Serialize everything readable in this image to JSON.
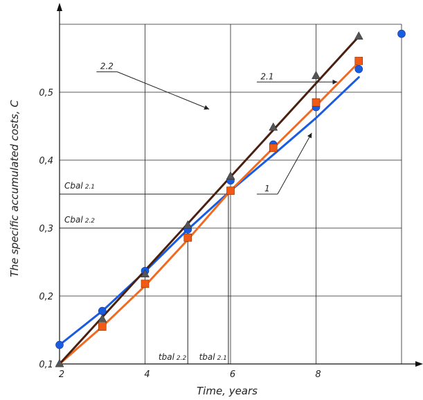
{
  "chart_data": {
    "type": "line",
    "title": "",
    "xlabel": "Time, years",
    "ylabel": "The specific accumulated costs, C",
    "xlim": [
      2,
      10
    ],
    "ylim": [
      0.1,
      0.6
    ],
    "x_ticks": [
      {
        "value": 2,
        "label": "2"
      },
      {
        "value": 4,
        "label": "4"
      },
      {
        "value": 6,
        "label": "6"
      },
      {
        "value": 8,
        "label": "8"
      }
    ],
    "y_ticks": [
      {
        "value": 0.1,
        "label": "0,1"
      },
      {
        "value": 0.2,
        "label": "0,2"
      },
      {
        "value": 0.3,
        "label": "0,3"
      },
      {
        "value": 0.4,
        "label": "0,4"
      },
      {
        "value": 0.5,
        "label": "0,5"
      }
    ],
    "grid": true,
    "series": [
      {
        "name": "1",
        "color": "#1a5be0",
        "marker": "circle",
        "marker_color": "#1a5be0",
        "line_x": [
          2,
          3,
          4,
          5,
          6,
          7,
          8,
          9
        ],
        "line_y": [
          0.128,
          0.178,
          0.236,
          0.298,
          0.355,
          0.408,
          0.462,
          0.522
        ],
        "points_x": [
          2,
          3,
          4,
          5,
          6,
          7,
          8,
          9,
          10
        ],
        "points_y": [
          0.128,
          0.178,
          0.237,
          0.298,
          0.37,
          0.423,
          0.478,
          0.534,
          0.586
        ]
      },
      {
        "name": "2.1",
        "color": "#f06a22",
        "marker": "square",
        "marker_color": "#f05a14",
        "line_x": [
          2,
          3,
          4,
          5,
          6,
          7,
          8,
          9
        ],
        "line_y": [
          0.1,
          0.155,
          0.215,
          0.283,
          0.355,
          0.418,
          0.48,
          0.544
        ],
        "points_x": [
          3,
          4,
          5,
          6,
          7,
          8,
          9
        ],
        "points_y": [
          0.155,
          0.218,
          0.286,
          0.355,
          0.418,
          0.485,
          0.546
        ]
      },
      {
        "name": "2.2",
        "color": "#4a2010",
        "marker": "triangle",
        "marker_color": "#555555",
        "line_x": [
          2,
          9
        ],
        "line_y": [
          0.1,
          0.582
        ],
        "points_x": [
          2,
          3,
          4,
          5,
          6,
          7,
          8,
          9
        ],
        "points_y": [
          0.1,
          0.166,
          0.232,
          0.304,
          0.376,
          0.448,
          0.524,
          0.582
        ]
      }
    ],
    "reference_lines": [
      {
        "axis": "y",
        "value": 0.35,
        "label": "Cbal",
        "subscript": "2.1",
        "x_from": 2,
        "x_to": 6
      },
      {
        "axis": "y",
        "value": 0.3,
        "label": "Cbal",
        "subscript": "2.2",
        "x_from": 2,
        "x_to": 5
      },
      {
        "axis": "x",
        "value": 5,
        "label": "tbal",
        "subscript": "2.2",
        "y_from": 0.1,
        "y_to": 0.3
      },
      {
        "axis": "x",
        "value": 5.95,
        "label": "tbal",
        "subscript": "2.1",
        "y_from": 0.1,
        "y_to": 0.35
      }
    ],
    "curve_labels": [
      {
        "text": "2.2",
        "at_x": 3.35,
        "at_y": 0.53,
        "to_x": 5.5,
        "to_y": 0.475
      },
      {
        "text": "2.1",
        "at_x": 7.1,
        "at_y": 0.515,
        "to_x": 8.5,
        "to_y": 0.515
      },
      {
        "text": "1",
        "at_x": 7.1,
        "at_y": 0.35,
        "to_x": 7.9,
        "to_y": 0.44
      }
    ]
  }
}
